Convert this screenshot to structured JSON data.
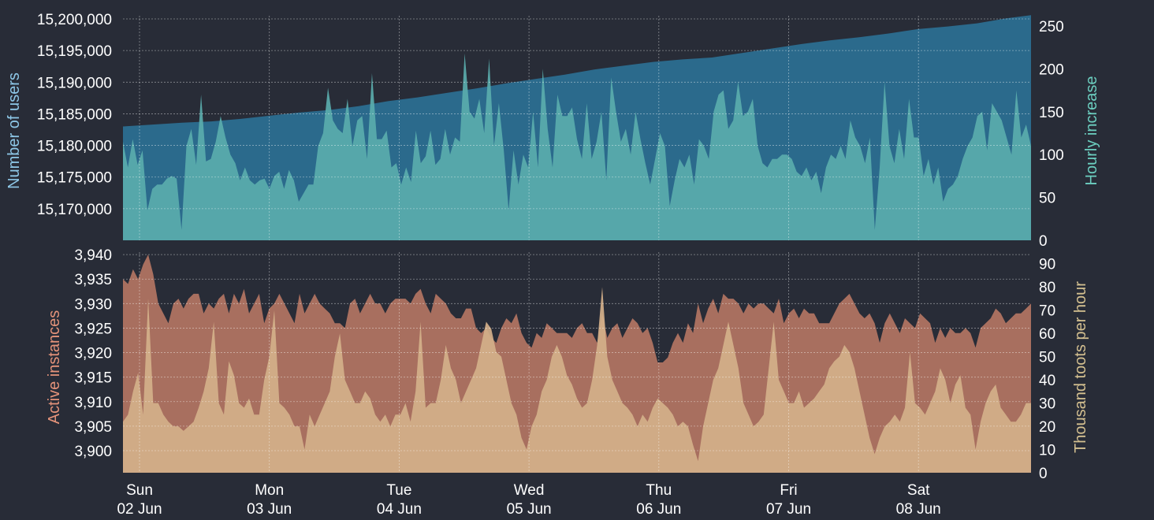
{
  "colors": {
    "background": "#282c37",
    "users_fill": "#2b6a8c",
    "hourly_increase_fill": "#5aadad",
    "instances_fill": "#a86f5f",
    "toots_fill": "#d4b08a",
    "users_label": "#8ec8e8",
    "hourly_label": "#6ccfc0",
    "instances_label": "#e5937a",
    "toots_label": "#d4c090",
    "tick_text": "#ffffff"
  },
  "chart_data": [
    {
      "type": "area",
      "name": "users",
      "ylabel_left": "Number of users",
      "ylabel_right": "Hourly increase",
      "left_ticks": [
        "15,170,000",
        "15,175,000",
        "15,180,000",
        "15,185,000",
        "15,190,000",
        "15,195,000",
        "15,200,000"
      ],
      "right_ticks": [
        "0",
        "50",
        "100",
        "150",
        "200",
        "250"
      ],
      "ylim_left": [
        15165000,
        15200500
      ],
      "ylim_right": [
        0,
        262
      ],
      "grid": true,
      "series": [
        {
          "axis": "left",
          "points": [
            [
              0,
              15183000
            ],
            [
              6,
              15183300
            ],
            [
              12,
              15183600
            ],
            [
              18,
              15183800
            ],
            [
              24,
              15184200
            ],
            [
              30,
              15184700
            ],
            [
              36,
              15185200
            ],
            [
              42,
              15185600
            ],
            [
              48,
              15186200
            ],
            [
              54,
              15187000
            ],
            [
              60,
              15187600
            ],
            [
              66,
              15188300
            ],
            [
              72,
              15189000
            ],
            [
              78,
              15189800
            ],
            [
              84,
              15190500
            ],
            [
              90,
              15191200
            ],
            [
              96,
              15192000
            ],
            [
              102,
              15192600
            ],
            [
              108,
              15193200
            ],
            [
              114,
              15193600
            ],
            [
              120,
              15193900
            ],
            [
              126,
              15194600
            ],
            [
              132,
              15195300
            ],
            [
              138,
              15196000
            ],
            [
              144,
              15196600
            ],
            [
              150,
              15197100
            ],
            [
              156,
              15197700
            ],
            [
              162,
              15198400
            ],
            [
              168,
              15198800
            ],
            [
              174,
              15199300
            ],
            [
              180,
              15200100
            ],
            [
              185,
              15200600
            ]
          ]
        },
        {
          "axis": "right",
          "values": [
            115,
            85,
            118,
            88,
            105,
            35,
            60,
            65,
            65,
            72,
            75,
            72,
            12,
            110,
            130,
            88,
            170,
            92,
            95,
            115,
            145,
            120,
            100,
            90,
            70,
            85,
            70,
            65,
            70,
            72,
            60,
            75,
            80,
            60,
            82,
            70,
            45,
            55,
            65,
            65,
            110,
            125,
            178,
            140,
            130,
            125,
            165,
            110,
            140,
            145,
            95,
            195,
            118,
            118,
            128,
            85,
            90,
            65,
            85,
            68,
            128,
            90,
            98,
            128,
            88,
            95,
            130,
            100,
            120,
            115,
            218,
            150,
            142,
            165,
            125,
            212,
            110,
            160,
            105,
            35,
            105,
            65,
            100,
            85,
            150,
            85,
            200,
            130,
            85,
            170,
            145,
            145,
            155,
            118,
            95,
            160,
            95,
            115,
            150,
            70,
            190,
            150,
            115,
            130,
            100,
            150,
            118,
            90,
            65,
            95,
            125,
            110,
            40,
            70,
            95,
            85,
            100,
            65,
            118,
            110,
            95,
            150,
            170,
            175,
            130,
            140,
            185,
            145,
            150,
            165,
            110,
            90,
            85,
            95,
            95,
            100,
            100,
            95,
            80,
            75,
            85,
            70,
            80,
            55,
            85,
            100,
            95,
            110,
            95,
            140,
            120,
            110,
            90,
            120,
            12,
            85,
            185,
            110,
            90,
            130,
            95,
            165,
            120,
            120,
            75,
            95,
            65,
            85,
            45,
            60,
            65,
            75,
            95,
            110,
            120,
            145,
            150,
            105,
            160,
            150,
            140,
            120,
            100,
            175,
            120,
            135,
            110
          ]
        }
      ]
    },
    {
      "type": "area",
      "name": "instances",
      "ylabel_left": "Active instances",
      "ylabel_right": "Thousand toots per hour",
      "left_ticks": [
        "3,900",
        "3,905",
        "3,910",
        "3,915",
        "3,920",
        "3,925",
        "3,930",
        "3,935",
        "3,940"
      ],
      "right_ticks": [
        "0",
        "10",
        "20",
        "30",
        "40",
        "50",
        "60",
        "70",
        "80",
        "90"
      ],
      "ylim_left": [
        3895.5,
        3940.5
      ],
      "ylim_right": [
        0,
        95
      ],
      "grid": true,
      "series": [
        {
          "axis": "left",
          "values": [
            3935,
            3934,
            3937,
            3935,
            3938,
            3940,
            3936,
            3930,
            3928,
            3926,
            3930,
            3931,
            3929,
            3931,
            3932,
            3932,
            3928,
            3930,
            3929,
            3931,
            3932,
            3928,
            3932,
            3930,
            3933,
            3928,
            3930,
            3932,
            3926,
            3929,
            3930,
            3932,
            3930,
            3928,
            3926,
            3932,
            3928,
            3930,
            3932,
            3930,
            3929,
            3928,
            3926,
            3926,
            3925,
            3930,
            3931,
            3928,
            3930,
            3932,
            3930,
            3930,
            3928,
            3930,
            3931,
            3931,
            3931,
            3930,
            3932,
            3933,
            3930,
            3928,
            3932,
            3931,
            3930,
            3928,
            3927,
            3927,
            3929,
            3929,
            3925,
            3924,
            3925,
            3923,
            3922,
            3925,
            3927,
            3926,
            3928,
            3924,
            3922,
            3921,
            3924,
            3923,
            3926,
            3925,
            3924,
            3924,
            3924,
            3923,
            3925,
            3926,
            3924,
            3924,
            3922,
            3928,
            3923,
            3925,
            3926,
            3923,
            3925,
            3927,
            3926,
            3924,
            3925,
            3922,
            3918,
            3918,
            3919,
            3922,
            3924,
            3922,
            3926,
            3924,
            3930,
            3926,
            3929,
            3931,
            3928,
            3932,
            3931,
            3931,
            3930,
            3928,
            3930,
            3929,
            3930,
            3930,
            3929,
            3928,
            3931,
            3926,
            3928,
            3929,
            3927,
            3929,
            3928,
            3928,
            3926,
            3926,
            3926,
            3928,
            3930,
            3931,
            3932,
            3930,
            3928,
            3927,
            3928,
            3926,
            3922,
            3926,
            3928,
            3926,
            3924,
            3927,
            3926,
            3925,
            3928,
            3927,
            3926,
            3922,
            3925,
            3923,
            3925,
            3924,
            3924,
            3925,
            3924,
            3921,
            3925,
            3926,
            3927,
            3929,
            3928,
            3926,
            3927,
            3928,
            3928,
            3929,
            3930
          ],
          "outline": "3926,3925,3924"
        },
        {
          "axis": "right",
          "values": [
            22,
            25,
            35,
            43,
            25,
            75,
            30,
            30,
            25,
            22,
            20,
            20,
            18,
            20,
            22,
            28,
            35,
            45,
            65,
            30,
            25,
            48,
            42,
            30,
            28,
            32,
            25,
            25,
            40,
            50,
            70,
            30,
            28,
            25,
            20,
            20,
            10,
            25,
            20,
            25,
            30,
            35,
            50,
            60,
            40,
            35,
            30,
            30,
            35,
            32,
            25,
            22,
            25,
            20,
            25,
            25,
            30,
            22,
            35,
            65,
            28,
            30,
            30,
            40,
            55,
            45,
            40,
            30,
            35,
            40,
            45,
            55,
            65,
            62,
            52,
            50,
            40,
            30,
            25,
            15,
            10,
            20,
            25,
            35,
            40,
            50,
            55,
            50,
            42,
            38,
            32,
            28,
            30,
            40,
            55,
            80,
            50,
            40,
            35,
            30,
            28,
            25,
            20,
            25,
            22,
            28,
            32,
            30,
            28,
            25,
            20,
            22,
            20,
            12,
            5,
            20,
            30,
            40,
            45,
            55,
            65,
            55,
            45,
            30,
            25,
            20,
            22,
            25,
            45,
            65,
            40,
            35,
            30,
            30,
            35,
            28,
            30,
            32,
            35,
            38,
            45,
            48,
            50,
            55,
            52,
            45,
            35,
            25,
            15,
            8,
            15,
            20,
            22,
            25,
            22,
            28,
            52,
            30,
            28,
            25,
            30,
            35,
            45,
            40,
            30,
            38,
            42,
            28,
            25,
            10,
            22,
            30,
            35,
            38,
            28,
            25,
            22,
            22,
            25,
            30,
            30
          ]
        }
      ]
    }
  ],
  "x_axis": {
    "days": [
      "Sun",
      "Mon",
      "Tue",
      "Wed",
      "Thu",
      "Fri",
      "Sat"
    ],
    "dates": [
      "02 Jun",
      "03 Jun",
      "04 Jun",
      "05 Jun",
      "06 Jun",
      "07 Jun",
      "08 Jun"
    ]
  }
}
